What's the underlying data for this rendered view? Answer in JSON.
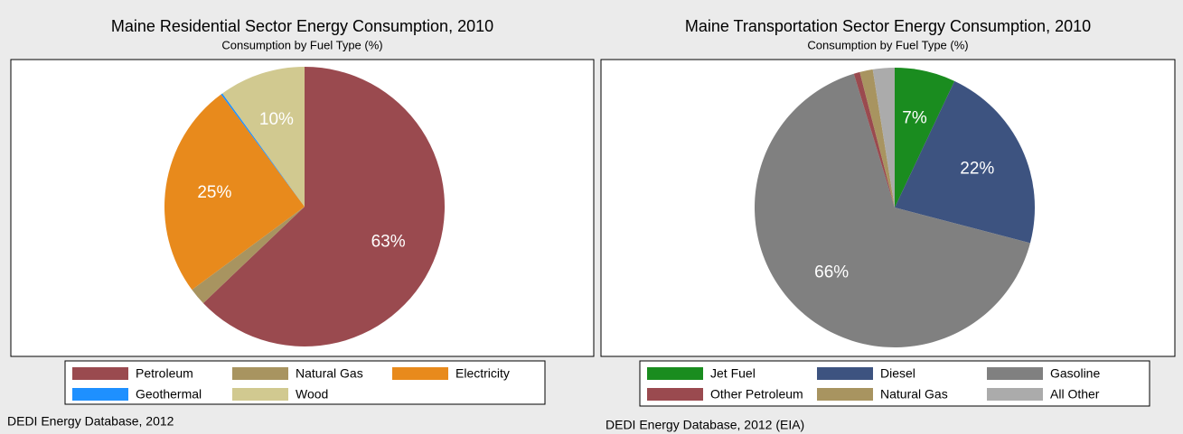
{
  "chart_data": [
    {
      "type": "pie",
      "title": "Maine Residential Sector Energy Consumption, 2010",
      "subtitle": "Consumption by Fuel Type (%)",
      "categories": [
        "Petroleum",
        "Natural Gas",
        "Electricity",
        "Geothermal",
        "Wood"
      ],
      "values": [
        63,
        2,
        25,
        0.2,
        10
      ],
      "value_labels": [
        "63%",
        null,
        "25%",
        null,
        "10%"
      ],
      "colors": [
        "#9a4a4f",
        "#a89460",
        "#e88a1c",
        "#1e90ff",
        "#d1c990"
      ],
      "source": "DEDI Energy Database, 2012"
    },
    {
      "type": "pie",
      "title": "Maine Transportation Sector Energy Consumption, 2010",
      "subtitle": "Consumption by Fuel Type (%)",
      "categories": [
        "Jet Fuel",
        "Diesel",
        "Gasoline",
        "Other Petroleum",
        "Natural Gas",
        "All Other"
      ],
      "values": [
        7,
        22,
        66,
        0.7,
        1.5,
        2.5
      ],
      "value_labels": [
        "7%",
        "22%",
        "66%",
        null,
        null,
        null
      ],
      "colors": [
        "#1a8c1f",
        "#3d5380",
        "#808080",
        "#9a4a4f",
        "#a89460",
        "#ababab"
      ],
      "source": "DEDI Energy Database, 2012  (EIA)"
    }
  ]
}
